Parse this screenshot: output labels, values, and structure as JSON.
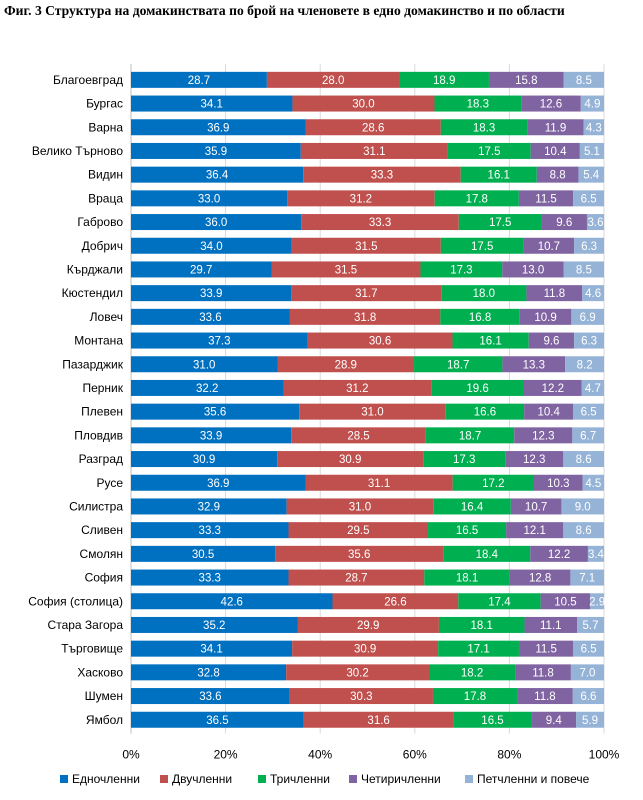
{
  "title": "Фиг. 3 Структура на домакинствата по брой на членовете в едно домакинство и по области",
  "chart_data": {
    "type": "bar",
    "orientation": "horizontal",
    "stacked": "percent",
    "title": "Фиг. 3 Структура на домакинствата по брой на членовете в едно домакинство и по области",
    "xlim": [
      0,
      100
    ],
    "x_ticks": [
      "0%",
      "20%",
      "40%",
      "60%",
      "80%",
      "100%"
    ],
    "legend_position": "bottom",
    "categories": [
      "Благоевград",
      "Бургас",
      "Варна",
      "Велико Търново",
      "Видин",
      "Враца",
      "Габрово",
      "Добрич",
      "Кърджали",
      "Кюстендил",
      "Ловеч",
      "Монтана",
      "Пазарджик",
      "Перник",
      "Плевен",
      "Пловдив",
      "Разград",
      "Русе",
      "Силистра",
      "Сливен",
      "Смолян",
      "София",
      "София (столица)",
      "Стара Загора",
      "Търговище",
      "Хасково",
      "Шумен",
      "Ямбол"
    ],
    "series": [
      {
        "name": "Едночленни",
        "color": "#0070C0",
        "values": [
          "28.7",
          "34.1",
          "36.9",
          "35.9",
          "36.4",
          "33.0",
          "36.0",
          "34.0",
          "29.7",
          "33.9",
          "33.6",
          "37.3",
          "31.0",
          "32.2",
          "35.6",
          "33.9",
          "30.9",
          "36.9",
          "32.9",
          "33.3",
          "30.5",
          "33.3",
          "42.6",
          "35.2",
          "34.1",
          "32.8",
          "33.6",
          "36.5"
        ]
      },
      {
        "name": "Двучленни",
        "color": "#C0504D",
        "values": [
          "28.0",
          "30.0",
          "28.6",
          "31.1",
          "33.3",
          "31.2",
          "33.3",
          "31.5",
          "31.5",
          "31.7",
          "31.8",
          "30.6",
          "28.9",
          "31.2",
          "31.0",
          "28.5",
          "30.9",
          "31.1",
          "31.0",
          "29.5",
          "35.6",
          "28.7",
          "26.6",
          "29.9",
          "30.9",
          "30.2",
          "30.3",
          "31.6"
        ]
      },
      {
        "name": "Тричленни",
        "color": "#00B050",
        "values": [
          "18.9",
          "18.3",
          "18.3",
          "17.5",
          "16.1",
          "17.8",
          "17.5",
          "17.5",
          "17.3",
          "18.0",
          "16.8",
          "16.1",
          "18.7",
          "19.6",
          "16.6",
          "18.7",
          "17.3",
          "17.2",
          "16.4",
          "16.5",
          "18.4",
          "18.1",
          "17.4",
          "18.1",
          "17.1",
          "18.2",
          "17.8",
          "16.5"
        ]
      },
      {
        "name": "Четиричленни",
        "color": "#8064A2",
        "values": [
          "15.8",
          "12.6",
          "11.9",
          "10.4",
          "8.8",
          "11.5",
          "9.6",
          "10.7",
          "13.0",
          "11.8",
          "10.9",
          "9.6",
          "13.3",
          "12.2",
          "10.4",
          "12.3",
          "12.3",
          "10.3",
          "10.7",
          "12.1",
          "12.2",
          "12.8",
          "10.5",
          "11.1",
          "11.5",
          "11.8",
          "11.8",
          "9.4"
        ]
      },
      {
        "name": "Петчленни и повече",
        "color": "#95B3D7",
        "values": [
          "8.5",
          "4.9",
          "4.3",
          "5.1",
          "5.4",
          "6.5",
          "3.6",
          "6.3",
          "8.5",
          "4.6",
          "6.9",
          "6.3",
          "8.2",
          "4.7",
          "6.5",
          "6.7",
          "8.6",
          "4.5",
          "9.0",
          "8.6",
          "3.4",
          "7.1",
          "2.9",
          "5.7",
          "6.5",
          "7.0",
          "6.6",
          "5.9"
        ]
      }
    ]
  }
}
